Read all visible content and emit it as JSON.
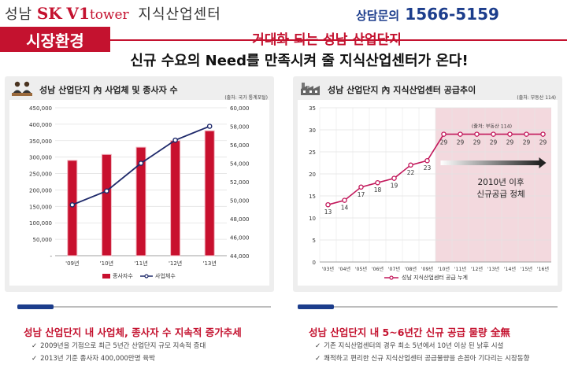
{
  "header": {
    "brand_city": "성남",
    "brand_sk": "SK",
    "brand_v1": "V1",
    "brand_tower": "tower",
    "brand_desc": "지식산업센터",
    "contact_label": "상담문의",
    "contact_number": "1566-5159"
  },
  "section_tag": "시장환경",
  "headline": {
    "line1": "거대화 되는 성남 산업단지",
    "line2": "신규 수요의 Need를 만족시켜 줄 지식산업센터가 온다!"
  },
  "colors": {
    "brand_red": "#c4122f",
    "navy": "#1c3d8c",
    "bar_red": "#c8102e",
    "line_navy": "#1f2a6b",
    "line_pink": "#c2185b",
    "shade_pink": "#f3d9de"
  },
  "chart_data": [
    {
      "type": "bar",
      "title": "성남 산업단지 內 사업체 및 종사자 수",
      "source": "(출처: 국가 통계포털)",
      "categories": [
        "'09년",
        "'10년",
        "'11년",
        "'12년",
        "'13년"
      ],
      "series": [
        {
          "name": "종사자수",
          "type": "bar",
          "axis": "left",
          "values": [
            290000,
            308000,
            330000,
            350000,
            380000
          ]
        },
        {
          "name": "사업체수",
          "type": "line",
          "axis": "right",
          "values": [
            49500,
            51000,
            54000,
            56500,
            58000
          ]
        }
      ],
      "left_axis": {
        "ylim": [
          0,
          450000
        ],
        "ticks": [
          "450,000",
          "400,000",
          "350,000",
          "300,000",
          "250,000",
          "200,000",
          "150,000",
          "100,000",
          "50,000",
          "-"
        ]
      },
      "right_axis": {
        "ylim": [
          44000,
          60000
        ],
        "ticks": [
          "60,000",
          "58,000",
          "56,000",
          "54,000",
          "52,000",
          "50,000",
          "48,000",
          "46,000",
          "44,000"
        ]
      },
      "grid": true,
      "legend": "bottom"
    },
    {
      "type": "line",
      "title": "성남 산업단지 內 지식산업센터 공급추이",
      "source": "(출처: 부동산 114)",
      "categories": [
        "'03년",
        "'04년",
        "'05년",
        "'06년",
        "'07년",
        "'08년",
        "'09년",
        "'10년",
        "'11년",
        "'12년",
        "'13년",
        "'14년",
        "'15년",
        "'16년"
      ],
      "series": [
        {
          "name": "성남 지식산업센터 공급 누계",
          "values": [
            13,
            14,
            17,
            18,
            19,
            22,
            23,
            29,
            29,
            29,
            29,
            29,
            29,
            29
          ]
        }
      ],
      "ylim": [
        0,
        35
      ],
      "y_ticks": [
        "35",
        "30",
        "25",
        "20",
        "15",
        "10",
        "5",
        "0"
      ],
      "annotation_source": "(출처: 부동산 114)",
      "annotation_line1": "2010년 이후",
      "annotation_line2": "신규공급 정체",
      "shaded_from": "'10년",
      "grid": true,
      "legend": "bottom"
    }
  ],
  "bottom": {
    "left_title": "성남 산업단지 내 사업체, 종사자 수 지속적 증가추세",
    "left_bullets": [
      "2009년을 기점으로 최근 5년간 산업단지 규모 지속적 증대",
      "2013년 기준 종사자 400,000만명 육박"
    ],
    "right_title": "성남 산업단지 내 5~6년간 신규 공급 물량 全無",
    "right_bullets": [
      "기존 지식산업센터의 경우 최소 5년에서 10년 이상 된 낡후 시설",
      "쾌적하고 편리한 신규 지식산업센터 공급물량을 손꼽아 기다리는 시장동향"
    ]
  }
}
